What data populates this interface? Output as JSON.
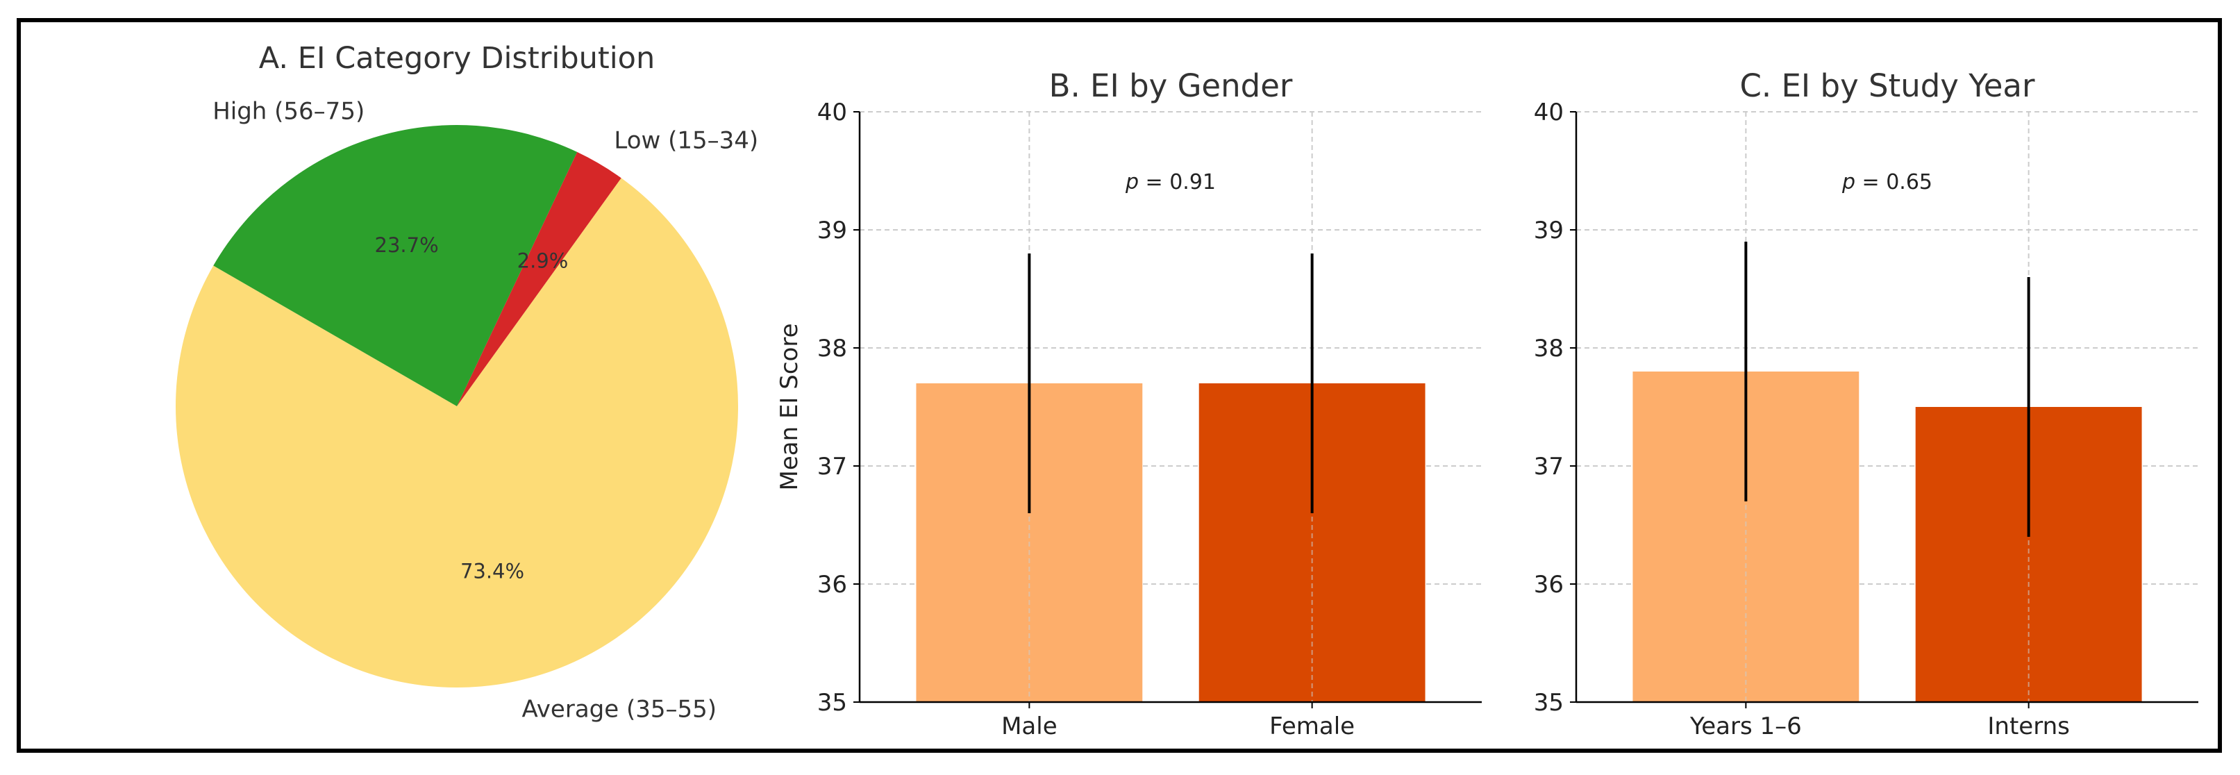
{
  "chart_data": [
    {
      "type": "pie",
      "title": "A. EI Category Distribution",
      "slices": [
        {
          "label": "Average (35–55)",
          "value": 73.4,
          "pct_label": "73.4%",
          "color": "#FDDC77"
        },
        {
          "label": "Low (15–34)",
          "value": 2.9,
          "pct_label": "2.9%",
          "color": "#D62728"
        },
        {
          "label": "High (56–75)",
          "value": 23.7,
          "pct_label": "23.7%",
          "color": "#2CA02C"
        }
      ],
      "start_angle_deg": 150,
      "direction": "counterclockwise"
    },
    {
      "type": "bar",
      "title": "B. EI by Gender",
      "categories": [
        "Male",
        "Female"
      ],
      "values": [
        37.7,
        37.7
      ],
      "errors": [
        1.1,
        1.1
      ],
      "colors": [
        "#FDAE6B",
        "#D94801"
      ],
      "ylabel": "Mean EI Score",
      "ylim": [
        35,
        40
      ],
      "yticks": [
        "35",
        "36",
        "37",
        "38",
        "39",
        "40"
      ],
      "annotation": {
        "prefix": "p",
        "text": " = 0.91"
      },
      "grid": true
    },
    {
      "type": "bar",
      "title": "C. EI by Study Year",
      "categories": [
        "Years 1–6",
        "Interns"
      ],
      "values": [
        37.8,
        37.5
      ],
      "errors": [
        1.1,
        1.1
      ],
      "colors": [
        "#FDAE6B",
        "#D94801"
      ],
      "ylabel": "",
      "ylim": [
        35,
        40
      ],
      "yticks": [
        "35",
        "36",
        "37",
        "38",
        "39",
        "40"
      ],
      "annotation": {
        "prefix": "p",
        "text": " = 0.65"
      },
      "grid": true
    }
  ]
}
